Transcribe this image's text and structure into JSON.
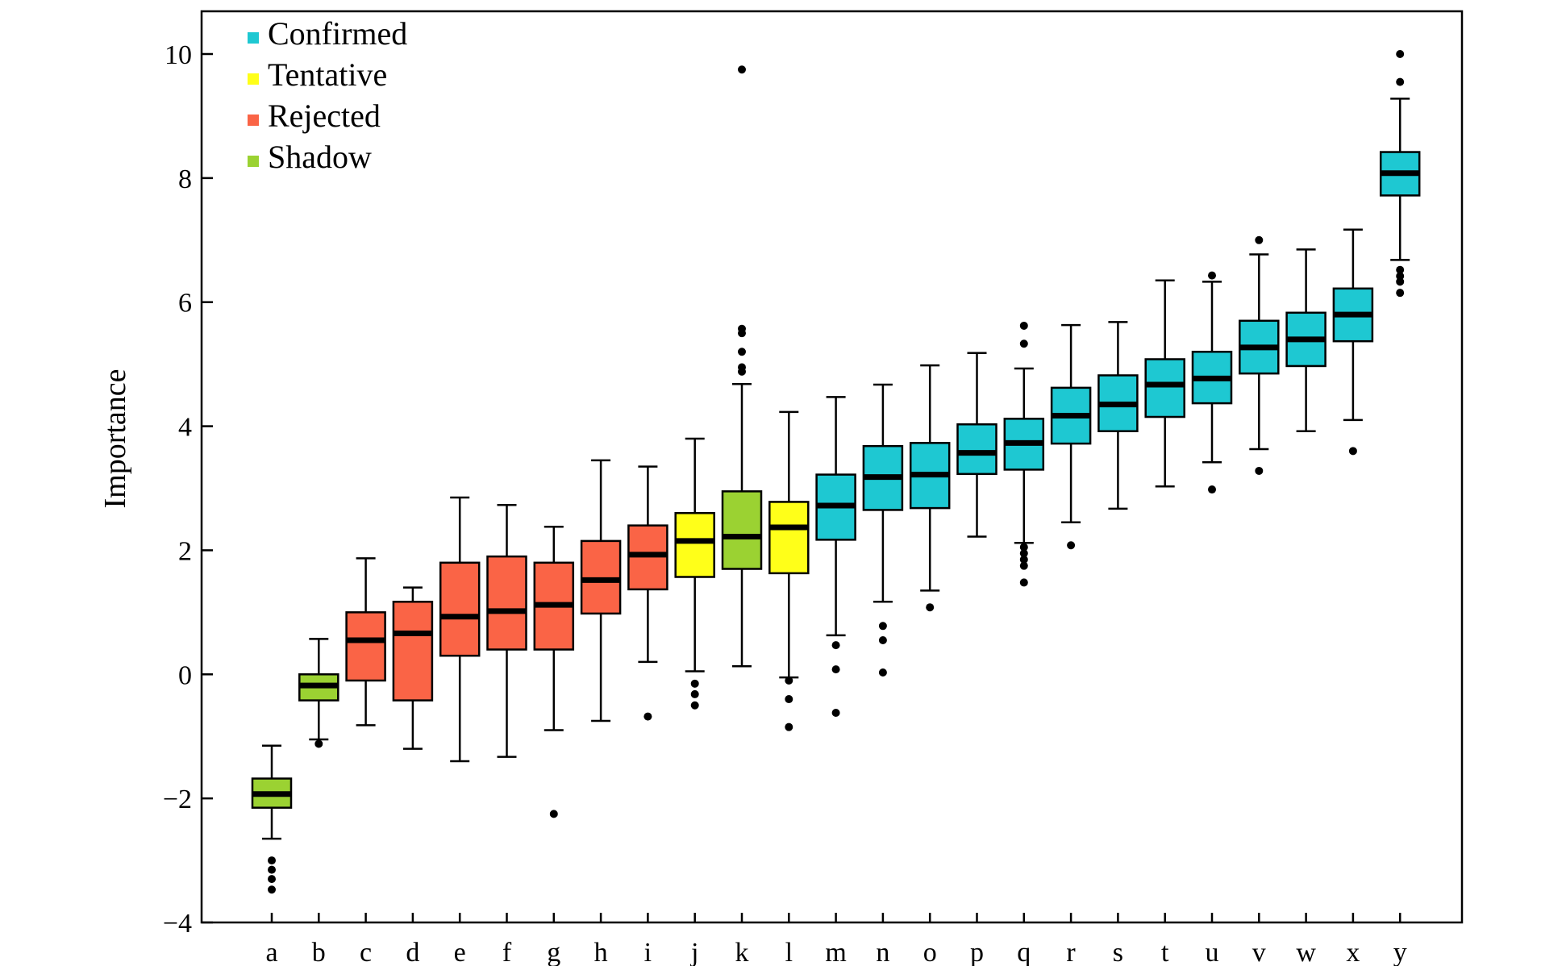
{
  "chart_data": {
    "type": "boxplot",
    "ylabel": "Importance",
    "xlabel": "",
    "ylim": [
      -4,
      10.7
    ],
    "yticks": [
      -4,
      -2,
      0,
      2,
      4,
      6,
      8,
      10
    ],
    "ytick_labels": [
      "−4",
      "−2",
      "0",
      "2",
      "4",
      "6",
      "8",
      "10"
    ],
    "grid": false,
    "legend_position": "top-left",
    "legend": [
      {
        "label": "Confirmed",
        "color": "#1ec8d2"
      },
      {
        "label": "Tentative",
        "color": "#ffff19"
      },
      {
        "label": "Rejected",
        "color": "#fa6446"
      },
      {
        "label": "Shadow",
        "color": "#9bd232"
      }
    ],
    "categories": [
      "a",
      "b",
      "c",
      "d",
      "e",
      "f",
      "g",
      "h",
      "i",
      "j",
      "k",
      "l",
      "m",
      "n",
      "o",
      "p",
      "q",
      "r",
      "s",
      "t",
      "u",
      "v",
      "w",
      "x",
      "y"
    ],
    "boxes": [
      {
        "name": "a",
        "status": "Shadow",
        "whisker_low": -2.65,
        "q1": -2.15,
        "median": -1.93,
        "q3": -1.68,
        "whisker_high": -1.15,
        "outliers": [
          -3.0,
          -3.15,
          -3.3,
          -3.47
        ]
      },
      {
        "name": "b",
        "status": "Shadow",
        "whisker_low": -1.05,
        "q1": -0.42,
        "median": -0.18,
        "q3": 0.0,
        "whisker_high": 0.57,
        "outliers": [
          -1.12
        ]
      },
      {
        "name": "c",
        "status": "Rejected",
        "whisker_low": -0.82,
        "q1": -0.1,
        "median": 0.55,
        "q3": 1.0,
        "whisker_high": 1.87,
        "outliers": []
      },
      {
        "name": "d",
        "status": "Rejected",
        "whisker_low": -1.2,
        "q1": -0.42,
        "median": 0.66,
        "q3": 1.17,
        "whisker_high": 1.4,
        "outliers": []
      },
      {
        "name": "e",
        "status": "Rejected",
        "whisker_low": -1.4,
        "q1": 0.3,
        "median": 0.93,
        "q3": 1.8,
        "whisker_high": 2.85,
        "outliers": []
      },
      {
        "name": "f",
        "status": "Rejected",
        "whisker_low": -1.33,
        "q1": 0.4,
        "median": 1.02,
        "q3": 1.9,
        "whisker_high": 2.73,
        "outliers": []
      },
      {
        "name": "g",
        "status": "Rejected",
        "whisker_low": -0.9,
        "q1": 0.4,
        "median": 1.12,
        "q3": 1.8,
        "whisker_high": 2.38,
        "outliers": [
          -2.25
        ]
      },
      {
        "name": "h",
        "status": "Rejected",
        "whisker_low": -0.75,
        "q1": 0.98,
        "median": 1.52,
        "q3": 2.15,
        "whisker_high": 3.45,
        "outliers": []
      },
      {
        "name": "i",
        "status": "Rejected",
        "whisker_low": 0.2,
        "q1": 1.37,
        "median": 1.93,
        "q3": 2.4,
        "whisker_high": 3.35,
        "outliers": [
          -0.68
        ]
      },
      {
        "name": "j",
        "status": "Tentative",
        "whisker_low": 0.05,
        "q1": 1.57,
        "median": 2.15,
        "q3": 2.6,
        "whisker_high": 3.8,
        "outliers": [
          -0.15,
          -0.32,
          -0.5
        ]
      },
      {
        "name": "k",
        "status": "Shadow",
        "whisker_low": 0.13,
        "q1": 1.7,
        "median": 2.22,
        "q3": 2.95,
        "whisker_high": 4.68,
        "outliers": [
          4.88,
          4.95,
          5.2,
          5.5,
          5.57,
          9.75
        ]
      },
      {
        "name": "l",
        "status": "Tentative",
        "whisker_low": -0.05,
        "q1": 1.63,
        "median": 2.37,
        "q3": 2.78,
        "whisker_high": 4.23,
        "outliers": [
          -0.1,
          -0.4,
          -0.85
        ]
      },
      {
        "name": "m",
        "status": "Confirmed",
        "whisker_low": 0.63,
        "q1": 2.17,
        "median": 2.72,
        "q3": 3.22,
        "whisker_high": 4.47,
        "outliers": [
          0.47,
          0.08,
          -0.62
        ]
      },
      {
        "name": "n",
        "status": "Confirmed",
        "whisker_low": 1.17,
        "q1": 2.65,
        "median": 3.18,
        "q3": 3.68,
        "whisker_high": 4.67,
        "outliers": [
          0.78,
          0.55,
          0.03
        ]
      },
      {
        "name": "o",
        "status": "Confirmed",
        "whisker_low": 1.35,
        "q1": 2.68,
        "median": 3.22,
        "q3": 3.73,
        "whisker_high": 4.98,
        "outliers": [
          1.08
        ]
      },
      {
        "name": "p",
        "status": "Confirmed",
        "whisker_low": 2.22,
        "q1": 3.23,
        "median": 3.57,
        "q3": 4.03,
        "whisker_high": 5.18,
        "outliers": []
      },
      {
        "name": "q",
        "status": "Confirmed",
        "whisker_low": 2.12,
        "q1": 3.3,
        "median": 3.73,
        "q3": 4.12,
        "whisker_high": 4.93,
        "outliers": [
          2.05,
          1.95,
          1.85,
          1.75,
          1.48,
          5.33,
          5.62
        ]
      },
      {
        "name": "r",
        "status": "Confirmed",
        "whisker_low": 2.45,
        "q1": 3.72,
        "median": 4.17,
        "q3": 4.62,
        "whisker_high": 5.63,
        "outliers": [
          2.08
        ]
      },
      {
        "name": "s",
        "status": "Confirmed",
        "whisker_low": 2.67,
        "q1": 3.92,
        "median": 4.35,
        "q3": 4.82,
        "whisker_high": 5.68,
        "outliers": []
      },
      {
        "name": "t",
        "status": "Confirmed",
        "whisker_low": 3.03,
        "q1": 4.15,
        "median": 4.67,
        "q3": 5.08,
        "whisker_high": 6.35,
        "outliers": []
      },
      {
        "name": "u",
        "status": "Confirmed",
        "whisker_low": 3.42,
        "q1": 4.37,
        "median": 4.77,
        "q3": 5.2,
        "whisker_high": 6.33,
        "outliers": [
          2.98,
          6.43
        ]
      },
      {
        "name": "v",
        "status": "Confirmed",
        "whisker_low": 3.63,
        "q1": 4.85,
        "median": 5.27,
        "q3": 5.7,
        "whisker_high": 6.77,
        "outliers": [
          3.28,
          7.0
        ]
      },
      {
        "name": "w",
        "status": "Confirmed",
        "whisker_low": 3.92,
        "q1": 4.97,
        "median": 5.4,
        "q3": 5.83,
        "whisker_high": 6.85,
        "outliers": []
      },
      {
        "name": "x",
        "status": "Confirmed",
        "whisker_low": 4.1,
        "q1": 5.37,
        "median": 5.8,
        "q3": 6.22,
        "whisker_high": 7.17,
        "outliers": [
          3.6
        ]
      },
      {
        "name": "y",
        "status": "Confirmed",
        "whisker_low": 6.68,
        "q1": 7.72,
        "median": 8.08,
        "q3": 8.42,
        "whisker_high": 9.28,
        "outliers": [
          6.15,
          6.33,
          6.42,
          6.52,
          9.55,
          10.0
        ]
      }
    ]
  }
}
